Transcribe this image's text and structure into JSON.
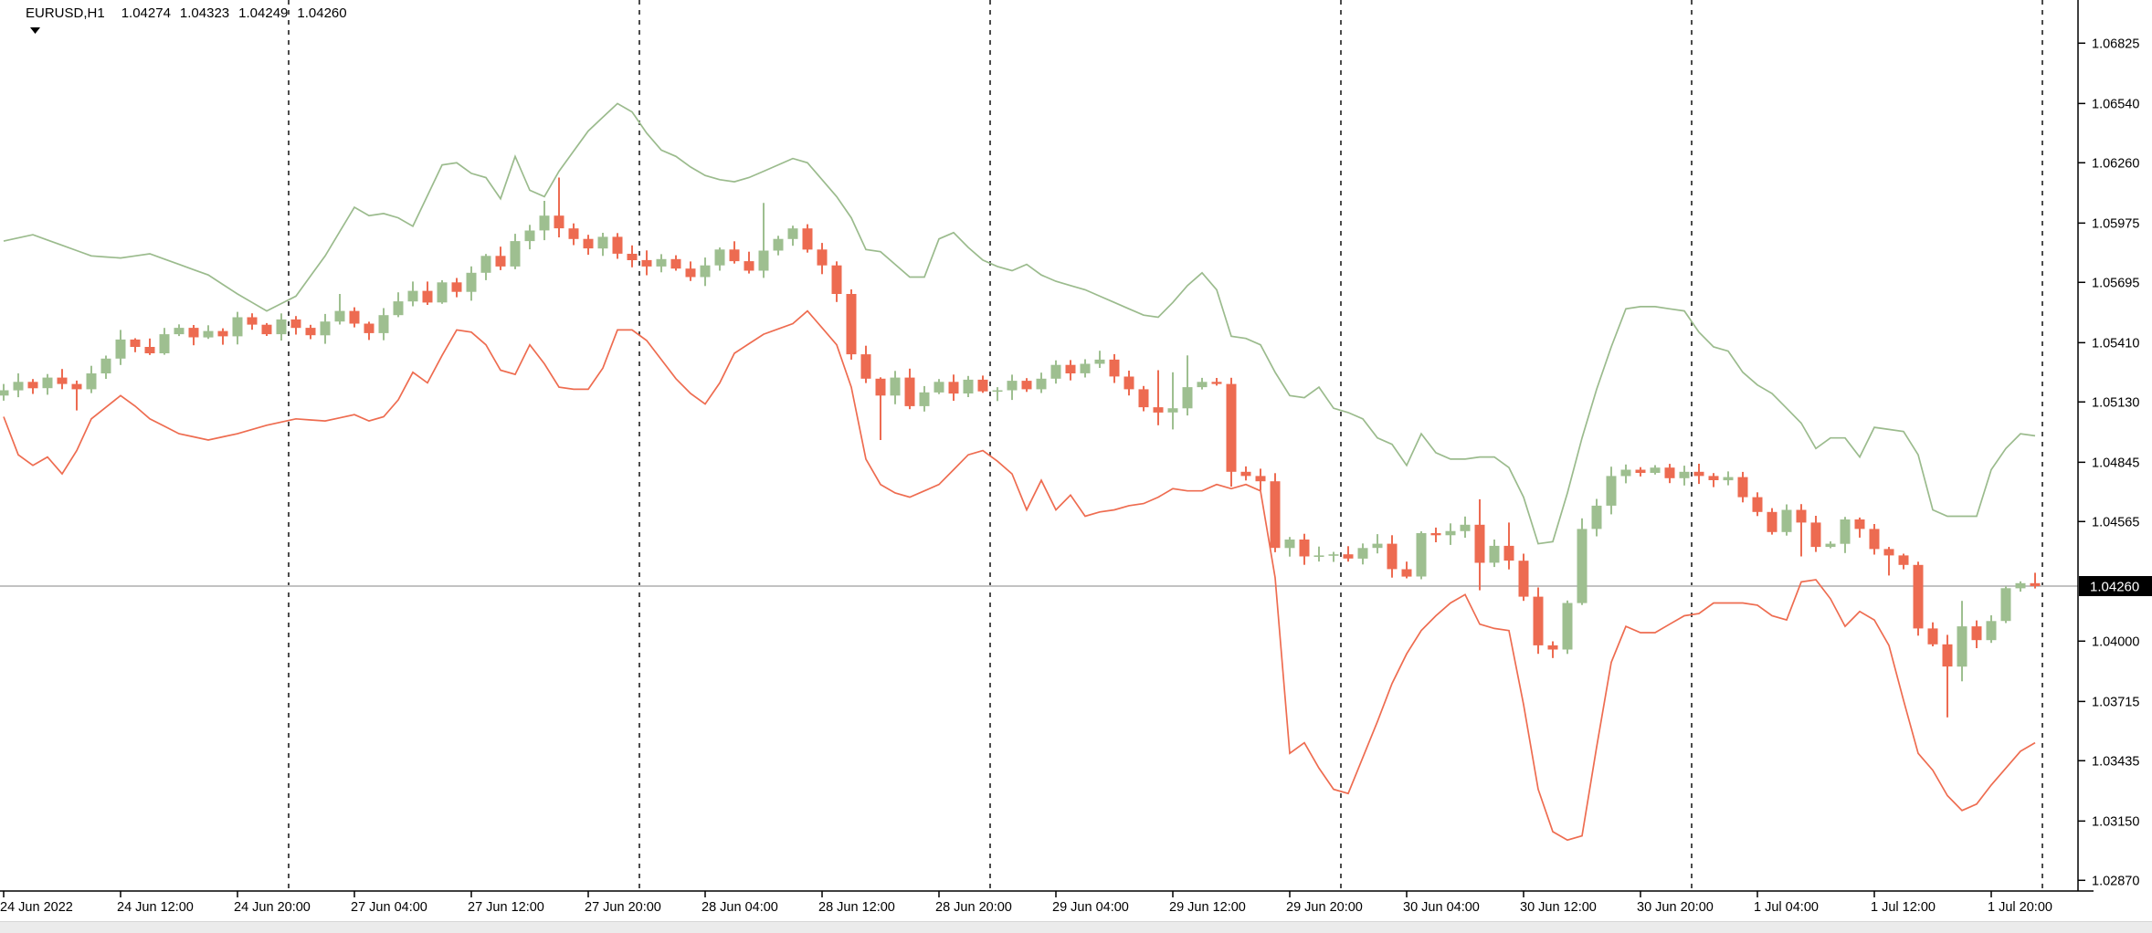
{
  "header": {
    "symbol_period": "EURUSD,H1",
    "open": "1.04274",
    "high": "1.04323",
    "low": "1.04249",
    "close": "1.04260"
  },
  "price_axis": {
    "tick_values": [
      1.06825,
      1.0654,
      1.0626,
      1.05975,
      1.05695,
      1.0541,
      1.0513,
      1.04845,
      1.04565,
      1.04,
      1.03715,
      1.03435,
      1.0315,
      1.0287
    ],
    "current_price": 1.0426,
    "current_label": "1.04260"
  },
  "time_axis": {
    "labels": [
      {
        "text": "24 Jun 2022",
        "candle": 0
      },
      {
        "text": "24 Jun 12:00",
        "candle": 8
      },
      {
        "text": "24 Jun 20:00",
        "candle": 16
      },
      {
        "text": "27 Jun 04:00",
        "candle": 24
      },
      {
        "text": "27 Jun 12:00",
        "candle": 32
      },
      {
        "text": "27 Jun 20:00",
        "candle": 40
      },
      {
        "text": "28 Jun 04:00",
        "candle": 48
      },
      {
        "text": "28 Jun 12:00",
        "candle": 56
      },
      {
        "text": "28 Jun 20:00",
        "candle": 64
      },
      {
        "text": "29 Jun 04:00",
        "candle": 72
      },
      {
        "text": "29 Jun 12:00",
        "candle": 80
      },
      {
        "text": "29 Jun 20:00",
        "candle": 88
      },
      {
        "text": "30 Jun 04:00",
        "candle": 96
      },
      {
        "text": "30 Jun 12:00",
        "candle": 104
      },
      {
        "text": "30 Jun 20:00",
        "candle": 112
      },
      {
        "text": "1 Jul 04:00",
        "candle": 120
      },
      {
        "text": "1 Jul 12:00",
        "candle": 128
      },
      {
        "text": "1 Jul 20:00",
        "candle": 136
      }
    ]
  },
  "day_separators": [
    20,
    44,
    68,
    92,
    116,
    140
  ],
  "colors": {
    "bull": "#9ebf90",
    "bear": "#ed6b51",
    "band_upper": "#9bbb8d",
    "band_lower": "#ee6c50",
    "price_line": "#c2c2c2",
    "separator": "#000000",
    "axis": "#000000",
    "text": "#000000",
    "tag_bg": "#000000",
    "tag_text": "#ffffff",
    "background": "#ffffff"
  },
  "chart_data": {
    "type": "candlestick",
    "symbol": "EURUSD",
    "timeframe": "H1",
    "title": "EURUSD,H1  1.04274 1.04323 1.04249 1.04260",
    "ylim": [
      1.0287,
      1.06825
    ],
    "grid": "day-separators-dashed",
    "legend": "none",
    "current_price": 1.0426,
    "first_open": 1.0516,
    "closes": [
      1.05185,
      1.05225,
      1.05195,
      1.05245,
      1.05215,
      1.0519,
      1.05265,
      1.05335,
      1.05425,
      1.0539,
      1.0536,
      1.0545,
      1.0548,
      1.05435,
      1.05465,
      1.0544,
      1.0553,
      1.05495,
      1.0545,
      1.0552,
      1.0548,
      1.05445,
      1.0551,
      1.0556,
      1.055,
      1.05455,
      1.0554,
      1.05605,
      1.05655,
      1.056,
      1.05695,
      1.0565,
      1.0574,
      1.0582,
      1.0577,
      1.0589,
      1.0594,
      1.0601,
      1.0595,
      1.059,
      1.05855,
      1.0591,
      1.0583,
      1.058,
      1.0577,
      1.05805,
      1.0576,
      1.0572,
      1.05775,
      1.0585,
      1.05795,
      1.0575,
      1.05845,
      1.059,
      1.0595,
      1.0585,
      1.05775,
      1.0564,
      1.05355,
      1.0524,
      1.0516,
      1.05245,
      1.0511,
      1.05175,
      1.05225,
      1.0517,
      1.05235,
      1.0518,
      1.05185,
      1.0523,
      1.0519,
      1.0524,
      1.05305,
      1.05265,
      1.0531,
      1.0533,
      1.0525,
      1.0519,
      1.05105,
      1.0508,
      1.051,
      1.052,
      1.05225,
      1.05215,
      1.048,
      1.0478,
      1.04755,
      1.0444,
      1.0448,
      1.044,
      1.04405,
      1.0441,
      1.0439,
      1.0444,
      1.0446,
      1.0434,
      1.04305,
      1.0451,
      1.045,
      1.0452,
      1.0455,
      1.0437,
      1.0445,
      1.0438,
      1.0421,
      1.0398,
      1.0396,
      1.0418,
      1.0453,
      1.0464,
      1.0478,
      1.0481,
      1.04795,
      1.0482,
      1.0477,
      1.048,
      1.0478,
      1.0476,
      1.04775,
      1.0468,
      1.0461,
      1.04515,
      1.0462,
      1.0456,
      1.04445,
      1.0446,
      1.04575,
      1.0453,
      1.04435,
      1.04405,
      1.0436,
      1.0406,
      1.03985,
      1.0388,
      1.0407,
      1.04005,
      1.04095,
      1.0425,
      1.04274,
      1.0426
    ],
    "wick_overrides": {
      "5": {
        "l": 1.0509
      },
      "8": {
        "h": 1.0547
      },
      "23": {
        "h": 1.0564
      },
      "37": {
        "h": 1.0608
      },
      "38": {
        "h": 1.0619
      },
      "52": {
        "h": 1.0607
      },
      "58": {
        "l": 1.0533
      },
      "60": {
        "l": 1.0495
      },
      "79": {
        "h": 1.0528,
        "l": 1.0502
      },
      "80": {
        "h": 1.0527,
        "l": 1.05
      },
      "81": {
        "h": 1.0535
      },
      "84": {
        "l": 1.0473
      },
      "87": {
        "l": 1.0442
      },
      "101": {
        "h": 1.0467,
        "l": 1.0424
      },
      "103": {
        "h": 1.0456
      },
      "105": {
        "l": 1.0394
      },
      "108": {
        "h": 1.0458
      },
      "123": {
        "l": 1.044
      },
      "129": {
        "l": 1.0431
      },
      "133": {
        "l": 1.0364
      },
      "134": {
        "h": 1.0419,
        "l": 1.0381
      },
      "139": {
        "h": 1.04323,
        "l": 1.04249
      }
    },
    "upper_band_anchors": [
      [
        0,
        1.0589
      ],
      [
        2,
        1.0592
      ],
      [
        4,
        1.0587
      ],
      [
        6,
        1.0582
      ],
      [
        8,
        1.0581
      ],
      [
        10,
        1.0583
      ],
      [
        12,
        1.0578
      ],
      [
        14,
        1.0573
      ],
      [
        16,
        1.0564
      ],
      [
        18,
        1.0556
      ],
      [
        20,
        1.0563
      ],
      [
        22,
        1.0582
      ],
      [
        24,
        1.0605
      ],
      [
        25,
        1.0601
      ],
      [
        26,
        1.0602
      ],
      [
        27,
        1.06
      ],
      [
        28,
        1.0596
      ],
      [
        30,
        1.0625
      ],
      [
        31,
        1.0626
      ],
      [
        32,
        1.0621
      ],
      [
        33,
        1.0619
      ],
      [
        34,
        1.0609
      ],
      [
        35,
        1.0629
      ],
      [
        36,
        1.0613
      ],
      [
        37,
        1.061
      ],
      [
        38,
        1.0622
      ],
      [
        40,
        1.0641
      ],
      [
        42,
        1.0654
      ],
      [
        43,
        1.065
      ],
      [
        44,
        1.064
      ],
      [
        45,
        1.0632
      ],
      [
        46,
        1.0629
      ],
      [
        47,
        1.0624
      ],
      [
        48,
        1.062
      ],
      [
        49,
        1.0618
      ],
      [
        50,
        1.0617
      ],
      [
        51,
        1.0619
      ],
      [
        52,
        1.0622
      ],
      [
        54,
        1.0628
      ],
      [
        55,
        1.0626
      ],
      [
        56,
        1.0618
      ],
      [
        57,
        1.061
      ],
      [
        58,
        1.06
      ],
      [
        59,
        1.0585
      ],
      [
        60,
        1.0584
      ],
      [
        61,
        1.0578
      ],
      [
        62,
        1.0572
      ],
      [
        63,
        1.0572
      ],
      [
        64,
        1.059
      ],
      [
        65,
        1.0593
      ],
      [
        66,
        1.0586
      ],
      [
        67,
        1.058
      ],
      [
        68,
        1.0577
      ],
      [
        69,
        1.0575
      ],
      [
        70,
        1.0578
      ],
      [
        71,
        1.0573
      ],
      [
        72,
        1.057
      ],
      [
        74,
        1.0566
      ],
      [
        76,
        1.056
      ],
      [
        78,
        1.0554
      ],
      [
        79,
        1.0553
      ],
      [
        80,
        1.056
      ],
      [
        81,
        1.0568
      ],
      [
        82,
        1.0574
      ],
      [
        83,
        1.0566
      ],
      [
        84,
        1.0544
      ],
      [
        85,
        1.0543
      ],
      [
        86,
        1.054
      ],
      [
        87,
        1.0527
      ],
      [
        88,
        1.0516
      ],
      [
        89,
        1.0515
      ],
      [
        90,
        1.052
      ],
      [
        91,
        1.051
      ],
      [
        92,
        1.0508
      ],
      [
        93,
        1.0505
      ],
      [
        94,
        1.0496
      ],
      [
        95,
        1.0493
      ],
      [
        96,
        1.0483
      ],
      [
        97,
        1.0498
      ],
      [
        98,
        1.0489
      ],
      [
        99,
        1.0486
      ],
      [
        100,
        1.0486
      ],
      [
        101,
        1.0487
      ],
      [
        102,
        1.0487
      ],
      [
        103,
        1.0482
      ],
      [
        104,
        1.0468
      ],
      [
        105,
        1.0446
      ],
      [
        106,
        1.0447
      ],
      [
        107,
        1.047
      ],
      [
        108,
        1.0496
      ],
      [
        109,
        1.0519
      ],
      [
        110,
        1.0539
      ],
      [
        111,
        1.0557
      ],
      [
        112,
        1.0558
      ],
      [
        113,
        1.0558
      ],
      [
        114,
        1.0557
      ],
      [
        115,
        1.0556
      ],
      [
        116,
        1.0546
      ],
      [
        117,
        1.0539
      ],
      [
        118,
        1.0537
      ],
      [
        119,
        1.0527
      ],
      [
        120,
        1.0521
      ],
      [
        121,
        1.0517
      ],
      [
        122,
        1.051
      ],
      [
        123,
        1.0503
      ],
      [
        124,
        1.0491
      ],
      [
        125,
        1.0496
      ],
      [
        126,
        1.0496
      ],
      [
        127,
        1.0487
      ],
      [
        128,
        1.0501
      ],
      [
        129,
        1.05
      ],
      [
        130,
        1.0499
      ],
      [
        131,
        1.0488
      ],
      [
        132,
        1.0462
      ],
      [
        133,
        1.0459
      ],
      [
        134,
        1.0459
      ],
      [
        135,
        1.0459
      ],
      [
        136,
        1.0481
      ],
      [
        137,
        1.0491
      ],
      [
        138,
        1.0498
      ],
      [
        139,
        1.0497
      ]
    ],
    "lower_band_anchors": [
      [
        0,
        1.0506
      ],
      [
        1,
        1.0488
      ],
      [
        2,
        1.0483
      ],
      [
        3,
        1.0487
      ],
      [
        4,
        1.0479
      ],
      [
        5,
        1.049
      ],
      [
        6,
        1.0505
      ],
      [
        8,
        1.0516
      ],
      [
        9,
        1.0511
      ],
      [
        10,
        1.0505
      ],
      [
        12,
        1.0498
      ],
      [
        14,
        1.0495
      ],
      [
        16,
        1.0498
      ],
      [
        18,
        1.0502
      ],
      [
        20,
        1.0505
      ],
      [
        22,
        1.0504
      ],
      [
        24,
        1.0507
      ],
      [
        25,
        1.0504
      ],
      [
        26,
        1.0506
      ],
      [
        27,
        1.0514
      ],
      [
        28,
        1.0527
      ],
      [
        29,
        1.0522
      ],
      [
        30,
        1.0535
      ],
      [
        31,
        1.0547
      ],
      [
        32,
        1.0546
      ],
      [
        33,
        1.054
      ],
      [
        34,
        1.0528
      ],
      [
        35,
        1.0526
      ],
      [
        36,
        1.054
      ],
      [
        37,
        1.0531
      ],
      [
        38,
        1.052
      ],
      [
        39,
        1.0519
      ],
      [
        40,
        1.0519
      ],
      [
        41,
        1.0529
      ],
      [
        42,
        1.0547
      ],
      [
        43,
        1.0547
      ],
      [
        44,
        1.0542
      ],
      [
        45,
        1.0533
      ],
      [
        46,
        1.0524
      ],
      [
        47,
        1.0517
      ],
      [
        48,
        1.0512
      ],
      [
        49,
        1.0522
      ],
      [
        50,
        1.0536
      ],
      [
        52,
        1.0545
      ],
      [
        54,
        1.055
      ],
      [
        55,
        1.0556
      ],
      [
        56,
        1.0548
      ],
      [
        57,
        1.054
      ],
      [
        58,
        1.052
      ],
      [
        59,
        1.0486
      ],
      [
        60,
        1.0474
      ],
      [
        61,
        1.047
      ],
      [
        62,
        1.0468
      ],
      [
        63,
        1.0471
      ],
      [
        64,
        1.0474
      ],
      [
        65,
        1.0481
      ],
      [
        66,
        1.0488
      ],
      [
        67,
        1.049
      ],
      [
        68,
        1.0485
      ],
      [
        69,
        1.0479
      ],
      [
        70,
        1.0462
      ],
      [
        71,
        1.0476
      ],
      [
        72,
        1.0462
      ],
      [
        73,
        1.0469
      ],
      [
        74,
        1.0459
      ],
      [
        75,
        1.0461
      ],
      [
        76,
        1.0462
      ],
      [
        77,
        1.0464
      ],
      [
        78,
        1.0465
      ],
      [
        79,
        1.0468
      ],
      [
        80,
        1.0472
      ],
      [
        81,
        1.0471
      ],
      [
        82,
        1.0471
      ],
      [
        83,
        1.0474
      ],
      [
        84,
        1.0472
      ],
      [
        85,
        1.0474
      ],
      [
        86,
        1.0471
      ],
      [
        87,
        1.043
      ],
      [
        88,
        1.0347
      ],
      [
        89,
        1.0352
      ],
      [
        90,
        1.034
      ],
      [
        91,
        1.033
      ],
      [
        92,
        1.0328
      ],
      [
        93,
        1.0345
      ],
      [
        94,
        1.0362
      ],
      [
        95,
        1.038
      ],
      [
        96,
        1.0394
      ],
      [
        97,
        1.0405
      ],
      [
        98,
        1.0412
      ],
      [
        99,
        1.0418
      ],
      [
        100,
        1.0422
      ],
      [
        101,
        1.0408
      ],
      [
        102,
        1.0406
      ],
      [
        103,
        1.0405
      ],
      [
        104,
        1.037
      ],
      [
        105,
        1.033
      ],
      [
        106,
        1.031
      ],
      [
        107,
        1.0306
      ],
      [
        108,
        1.0308
      ],
      [
        109,
        1.035
      ],
      [
        110,
        1.039
      ],
      [
        111,
        1.0407
      ],
      [
        112,
        1.0404
      ],
      [
        113,
        1.0404
      ],
      [
        114,
        1.0408
      ],
      [
        115,
        1.0412
      ],
      [
        116,
        1.0413
      ],
      [
        117,
        1.0418
      ],
      [
        118,
        1.0418
      ],
      [
        119,
        1.0418
      ],
      [
        120,
        1.0417
      ],
      [
        121,
        1.0412
      ],
      [
        122,
        1.041
      ],
      [
        123,
        1.0428
      ],
      [
        124,
        1.0429
      ],
      [
        125,
        1.042
      ],
      [
        126,
        1.0407
      ],
      [
        127,
        1.0414
      ],
      [
        128,
        1.041
      ],
      [
        129,
        1.0398
      ],
      [
        130,
        1.0372
      ],
      [
        131,
        1.0347
      ],
      [
        132,
        1.0339
      ],
      [
        133,
        1.0327
      ],
      [
        134,
        1.032
      ],
      [
        135,
        1.0323
      ],
      [
        136,
        1.0332
      ],
      [
        137,
        1.034
      ],
      [
        138,
        1.0348
      ],
      [
        139,
        1.0352
      ]
    ]
  }
}
